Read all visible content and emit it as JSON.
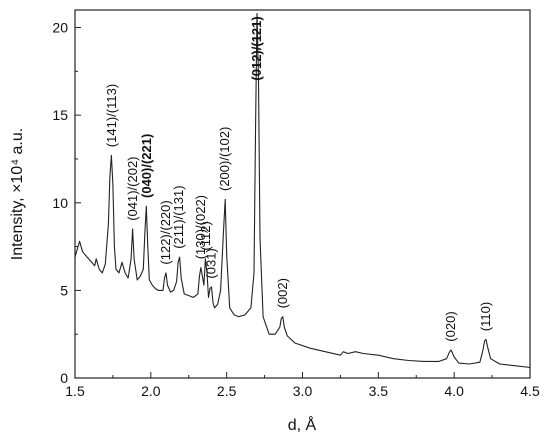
{
  "chart_data": {
    "type": "line",
    "xlabel": "d, Å",
    "ylabel": "Intensity, ×10⁴ a.u.",
    "xlim": [
      1.5,
      4.5
    ],
    "ylim": [
      0,
      21
    ],
    "x_ticks": [
      "1.5",
      "2.0",
      "2.5",
      "3.0",
      "3.5",
      "4.0",
      "4.5"
    ],
    "y_ticks": [
      "0",
      "5",
      "10",
      "15",
      "20"
    ],
    "x_tick_values": [
      1.5,
      2.0,
      2.5,
      3.0,
      3.5,
      4.0,
      4.5
    ],
    "y_tick_values": [
      0,
      5,
      10,
      15,
      20
    ],
    "series": [
      {
        "color": "#222222",
        "x": [
          1.5,
          1.52,
          1.53,
          1.55,
          1.58,
          1.61,
          1.63,
          1.64,
          1.66,
          1.68,
          1.7,
          1.72,
          1.73,
          1.74,
          1.75,
          1.76,
          1.77,
          1.79,
          1.81,
          1.83,
          1.85,
          1.87,
          1.88,
          1.89,
          1.91,
          1.93,
          1.95,
          1.96,
          1.97,
          1.98,
          1.99,
          2.01,
          2.03,
          2.05,
          2.08,
          2.09,
          2.1,
          2.11,
          2.13,
          2.15,
          2.17,
          2.18,
          2.19,
          2.2,
          2.22,
          2.25,
          2.28,
          2.31,
          2.32,
          2.33,
          2.34,
          2.35,
          2.36,
          2.37,
          2.38,
          2.39,
          2.4,
          2.41,
          2.42,
          2.44,
          2.46,
          2.48,
          2.49,
          2.5,
          2.52,
          2.55,
          2.58,
          2.62,
          2.66,
          2.68,
          2.69,
          2.7,
          2.71,
          2.72,
          2.74,
          2.78,
          2.82,
          2.85,
          2.86,
          2.87,
          2.88,
          2.9,
          2.95,
          3.05,
          3.15,
          3.25,
          3.27,
          3.3,
          3.35,
          3.4,
          3.5,
          3.6,
          3.7,
          3.8,
          3.9,
          3.95,
          3.97,
          3.98,
          4.0,
          4.03,
          4.1,
          4.17,
          4.19,
          4.2,
          4.21,
          4.22,
          4.24,
          4.3,
          4.4,
          4.5
        ],
        "y": [
          6.9,
          7.5,
          7.8,
          7.2,
          6.9,
          6.6,
          6.4,
          6.8,
          6.2,
          6.0,
          6.5,
          8.8,
          11.5,
          12.7,
          11.0,
          7.5,
          6.2,
          6.0,
          6.6,
          6.0,
          5.7,
          6.8,
          8.5,
          6.8,
          5.6,
          5.8,
          6.2,
          8.2,
          9.8,
          7.5,
          5.6,
          5.3,
          5.1,
          5.0,
          5.0,
          5.7,
          6.0,
          5.3,
          4.9,
          5.0,
          5.5,
          6.6,
          6.9,
          5.7,
          4.8,
          4.7,
          4.6,
          4.8,
          5.8,
          6.3,
          5.8,
          5.3,
          6.8,
          6.0,
          4.6,
          5.1,
          5.2,
          4.3,
          4.0,
          4.2,
          5.0,
          8.5,
          10.2,
          7.0,
          4.0,
          3.6,
          3.5,
          3.6,
          4.0,
          6.0,
          14.0,
          20.8,
          17.0,
          8.0,
          3.5,
          2.5,
          2.5,
          2.9,
          3.4,
          3.5,
          2.9,
          2.4,
          2.0,
          1.7,
          1.5,
          1.3,
          1.5,
          1.4,
          1.5,
          1.4,
          1.3,
          1.1,
          1.0,
          0.95,
          0.95,
          1.1,
          1.5,
          1.6,
          1.2,
          0.85,
          0.8,
          0.9,
          1.6,
          2.1,
          2.2,
          1.8,
          1.1,
          0.8,
          0.7,
          0.6
        ]
      }
    ],
    "annotations": [
      {
        "text": "(141)/(113)",
        "x": 1.745,
        "y": 13.0,
        "bold": false
      },
      {
        "text": "(041)/(202)",
        "x": 1.882,
        "y": 8.8,
        "bold": false
      },
      {
        "text": "(040)/(221)",
        "x": 1.975,
        "y": 10.1,
        "bold": true
      },
      {
        "text": "(122)/(220)",
        "x": 2.1,
        "y": 6.3,
        "bold": false
      },
      {
        "text": "(211)/(131)",
        "x": 2.185,
        "y": 7.2,
        "bold": false
      },
      {
        "text": "(130)/(022)",
        "x": 2.33,
        "y": 6.6,
        "bold": false
      },
      {
        "text": "(112)",
        "x": 2.365,
        "y": 7.1,
        "bold": false
      },
      {
        "text": "(031)",
        "x": 2.4,
        "y": 5.5,
        "bold": false
      },
      {
        "text": "(200)/(102)",
        "x": 2.49,
        "y": 10.5,
        "bold": false
      },
      {
        "text": "(012)/(121)",
        "x": 2.7,
        "y": 16.8,
        "bold": true
      },
      {
        "text": "(002)",
        "x": 2.87,
        "y": 3.8,
        "bold": false
      },
      {
        "text": "(020)",
        "x": 3.98,
        "y": 1.9,
        "bold": false
      },
      {
        "text": "(110)",
        "x": 4.21,
        "y": 2.5,
        "bold": false
      }
    ]
  }
}
